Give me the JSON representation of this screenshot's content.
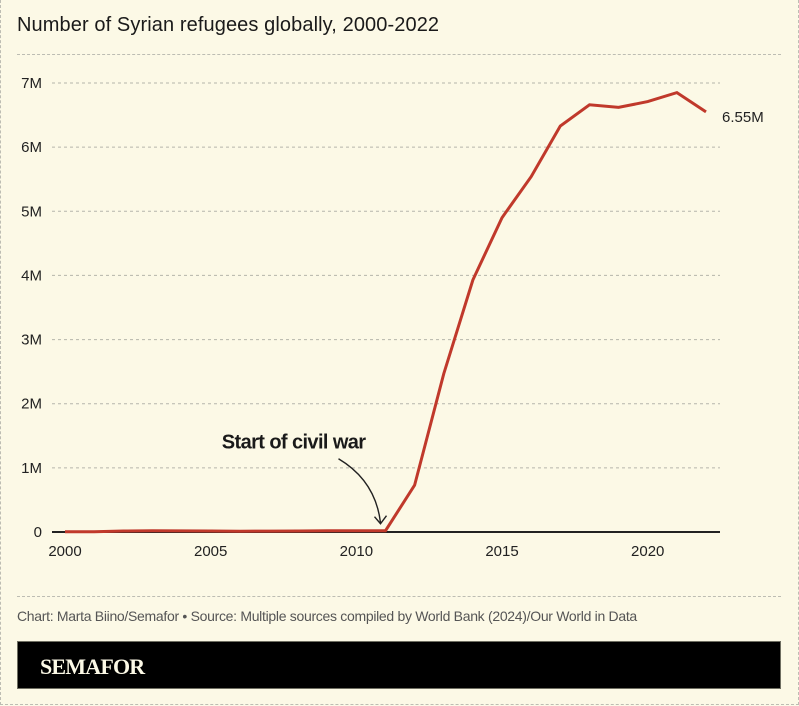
{
  "chart_data": {
    "type": "line",
    "title": "Number of Syrian refugees globally, 2000-2022",
    "xlabel": "",
    "ylabel": "",
    "x": [
      2000,
      2001,
      2002,
      2003,
      2004,
      2005,
      2006,
      2007,
      2008,
      2009,
      2010,
      2011,
      2012,
      2013,
      2014,
      2015,
      2016,
      2017,
      2018,
      2019,
      2020,
      2021,
      2022
    ],
    "series": [
      {
        "name": "Syrian refugees",
        "color": "#c0392b",
        "values": [
          0.004,
          0.005,
          0.015,
          0.018,
          0.017,
          0.016,
          0.013,
          0.014,
          0.015,
          0.018,
          0.018,
          0.02,
          0.73,
          2.47,
          3.93,
          4.9,
          5.54,
          6.33,
          6.66,
          6.62,
          6.71,
          6.85,
          6.55
        ]
      }
    ],
    "xlim": [
      2000,
      2022
    ],
    "ylim": [
      0,
      7
    ],
    "x_ticks": [
      2000,
      2005,
      2010,
      2015,
      2020
    ],
    "x_tick_labels": [
      "2000",
      "2005",
      "2010",
      "2015",
      "2020"
    ],
    "y_ticks": [
      0,
      1,
      2,
      3,
      4,
      5,
      6,
      7
    ],
    "y_tick_labels": [
      "0",
      "1M",
      "2M",
      "3M",
      "4M",
      "5M",
      "6M",
      "7M"
    ],
    "grid": "horizontal-dashed",
    "legend": "none",
    "end_label": "6.55M",
    "annotations": [
      {
        "text": "Start of civil war",
        "x": 2011,
        "y": 0.02,
        "type": "arrow"
      }
    ]
  },
  "footer": {
    "source": "Chart: Marta Biino/Semafor • Source: Multiple sources compiled by World Bank (2024)/Our World in Data",
    "brand": "SEMAFOR"
  },
  "colors": {
    "background": "#fcf9e6",
    "line": "#c0392b",
    "grid": "#b5b5ab",
    "axis": "#222222",
    "brandbar": "#000000"
  }
}
